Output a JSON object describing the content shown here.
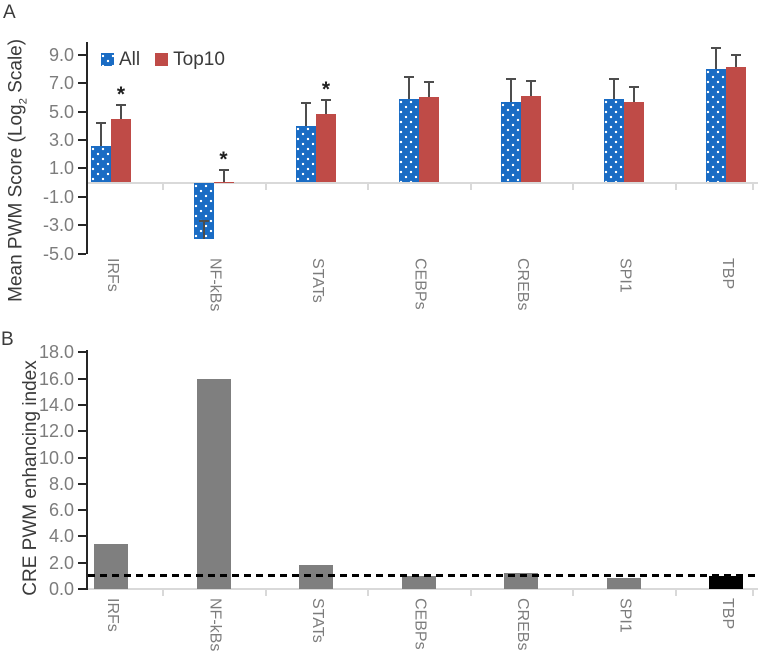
{
  "figure": {
    "panel_a_label": "A",
    "panel_b_label": "B",
    "background": "#FFFFFF"
  },
  "chart_data": [
    {
      "panel": "A",
      "type": "bar",
      "ylabel": {
        "pre": "Mean PWM Score (Log",
        "sub": "2",
        "post": " Scale)"
      },
      "categories": [
        "IRFs",
        "NF-kBs",
        "STATs",
        "CEBPs",
        "CREBs",
        "SPI1",
        "TBP"
      ],
      "series": [
        {
          "name": "All",
          "color": "#1A6CC4",
          "fill": "blue-white-dots",
          "values": [
            2.6,
            -4.0,
            4.0,
            5.9,
            5.7,
            5.9,
            8.0
          ],
          "errors_plus": [
            1.6,
            1.3,
            1.6,
            1.5,
            1.6,
            1.4,
            1.45
          ]
        },
        {
          "name": "Top10",
          "color": "#BF4B47",
          "fill": "solid",
          "values": [
            4.5,
            0.05,
            4.8,
            6.0,
            6.1,
            5.7,
            8.1
          ],
          "errors_plus": [
            0.95,
            0.85,
            1.0,
            1.1,
            1.05,
            1.0,
            0.9
          ]
        }
      ],
      "significance": {
        "marker": "*",
        "on_series": "Top10",
        "categories": [
          "IRFs",
          "NF-kBs",
          "STATs"
        ]
      },
      "yticks": [
        9.0,
        7.0,
        5.0,
        3.0,
        1.0,
        -1.0,
        -3.0,
        -5.0
      ],
      "ylim": [
        -5.6,
        9.9
      ],
      "legend": {
        "position": "top-left-inside",
        "entries": [
          "All",
          "Top10"
        ]
      },
      "gridlines": "none"
    },
    {
      "panel": "B",
      "type": "bar",
      "ylabel": {
        "pre": "CRE PWM enhancing index",
        "sub": "",
        "post": ""
      },
      "categories": [
        "IRFs",
        "NF-kBs",
        "STATs",
        "CEBPs",
        "CREBs",
        "SPI1",
        "TBP"
      ],
      "series": [
        {
          "name": "CRE PWM enhancing index",
          "color": "#7F7F7F",
          "fill": "solid",
          "values": [
            3.4,
            16.0,
            1.8,
            1.0,
            1.2,
            0.8,
            1.0
          ],
          "bar_colors": [
            "#7F7F7F",
            "#7F7F7F",
            "#7F7F7F",
            "#7F7F7F",
            "#7F7F7F",
            "#7F7F7F",
            "#000000"
          ]
        }
      ],
      "reference_line": {
        "value": 1.0,
        "style": "dashed",
        "color": "#000000"
      },
      "yticks": [
        18.0,
        16.0,
        14.0,
        12.0,
        10.0,
        8.0,
        6.0,
        4.0,
        2.0,
        0.0
      ],
      "ylim": [
        0,
        18.8
      ],
      "gridlines": "none"
    }
  ],
  "styles": {
    "error_bar_color": "#4D4D4D",
    "axis_line_color": "#262626",
    "baseline_color": "#D9D9D9",
    "tick_label_color": "#7C7C7C",
    "category_label_color": "#7C7C7C",
    "title_color": "#3B3B3B"
  }
}
